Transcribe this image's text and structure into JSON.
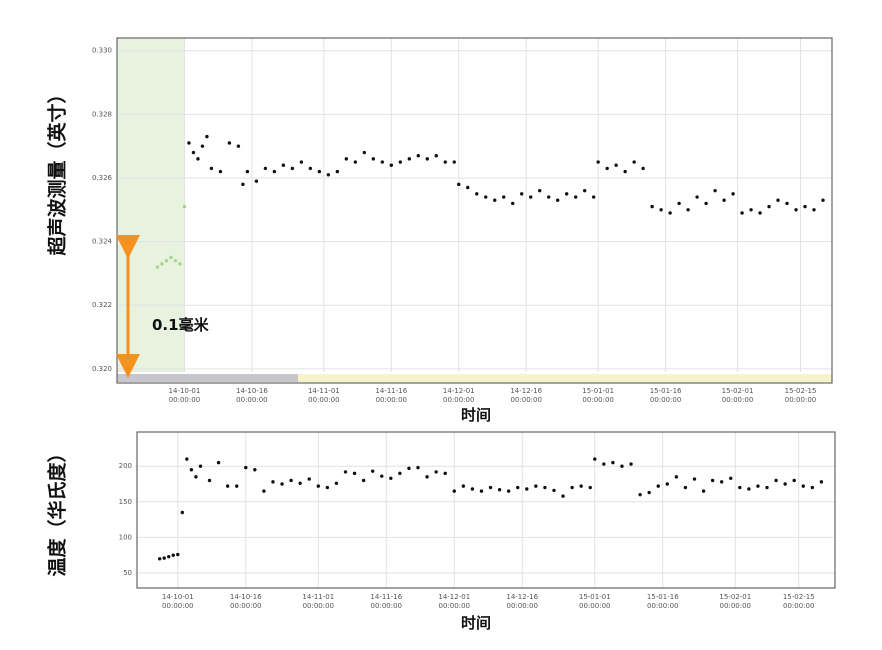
{
  "chart_data": [
    {
      "type": "scatter",
      "ylabel": "超声波测量（英寸）",
      "xlabel": "时间",
      "annotation": "0.1毫米",
      "xlim": [
        "14-09-16",
        "15-02-22"
      ],
      "ylim": [
        0.3199,
        0.3304
      ],
      "highlight_range": [
        "14-09-16",
        "14-10-01"
      ],
      "highlight_color": "#e8f3df",
      "grid": true,
      "yticks": [
        {
          "value": 0.32,
          "label": "0.320"
        },
        {
          "value": 0.322,
          "label": "0.322"
        },
        {
          "value": 0.324,
          "label": "0.324"
        },
        {
          "value": 0.326,
          "label": "0.326"
        },
        {
          "value": 0.328,
          "label": "0.328"
        },
        {
          "value": 0.33,
          "label": "0.330"
        }
      ],
      "xticks": [
        {
          "value": "14-10-01",
          "label": "14-10-01 00:00:00"
        },
        {
          "value": "14-10-16",
          "label": "14-10-16 00:00:00"
        },
        {
          "value": "14-11-01",
          "label": "14-11-01 00:00:00"
        },
        {
          "value": "14-11-16",
          "label": "14-11-16 00:00:00"
        },
        {
          "value": "14-12-01",
          "label": "14-12-01 00:00:00"
        },
        {
          "value": "14-12-16",
          "label": "14-12-16 00:00:00"
        },
        {
          "value": "15-01-01",
          "label": "15-01-01 00:00:00"
        },
        {
          "value": "15-01-16",
          "label": "15-01-16 00:00:00"
        },
        {
          "value": "15-02-01",
          "label": "15-02-01 00:00:00"
        },
        {
          "value": "15-02-15",
          "label": "15-02-15 00:00:00"
        }
      ],
      "series": [
        {
          "color": "#a6d48a",
          "x": [
            "14-09-25",
            "14-09-26",
            "14-09-27",
            "14-09-28",
            "14-09-29",
            "14-09-30",
            "14-10-01"
          ],
          "values": [
            0.3232,
            0.3233,
            0.3234,
            0.3235,
            0.3234,
            0.3233,
            0.3251
          ]
        },
        {
          "color": "#111111",
          "x": [
            "14-10-02",
            "14-10-03",
            "14-10-04",
            "14-10-05",
            "14-10-06",
            "14-10-07",
            "14-10-09",
            "14-10-11",
            "14-10-13",
            "14-10-14",
            "14-10-15",
            "14-10-17",
            "14-10-19",
            "14-10-21",
            "14-10-23",
            "14-10-25",
            "14-10-27",
            "14-10-29",
            "14-10-31",
            "14-11-02",
            "14-11-04",
            "14-11-06",
            "14-11-08",
            "14-11-10",
            "14-11-12",
            "14-11-14",
            "14-11-16",
            "14-11-18",
            "14-11-20",
            "14-11-22",
            "14-11-24",
            "14-11-26",
            "14-11-28",
            "14-11-30",
            "14-12-01",
            "14-12-03",
            "14-12-05",
            "14-12-07",
            "14-12-09",
            "14-12-11",
            "14-12-13",
            "14-12-15",
            "14-12-17",
            "14-12-19",
            "14-12-21",
            "14-12-23",
            "14-12-25",
            "14-12-27",
            "14-12-29",
            "14-12-31",
            "15-01-01",
            "15-01-03",
            "15-01-05",
            "15-01-07",
            "15-01-09",
            "15-01-11",
            "15-01-13",
            "15-01-15",
            "15-01-17",
            "15-01-19",
            "15-01-21",
            "15-01-23",
            "15-01-25",
            "15-01-27",
            "15-01-29",
            "15-01-31",
            "15-02-02",
            "15-02-04",
            "15-02-06",
            "15-02-08",
            "15-02-10",
            "15-02-12",
            "15-02-14",
            "15-02-16",
            "15-02-18",
            "15-02-20"
          ],
          "values": [
            0.3271,
            0.3268,
            0.3266,
            0.327,
            0.3273,
            0.3263,
            0.3262,
            0.3271,
            0.327,
            0.3258,
            0.3262,
            0.3259,
            0.3263,
            0.3262,
            0.3264,
            0.3263,
            0.3265,
            0.3263,
            0.3262,
            0.3261,
            0.3262,
            0.3266,
            0.3265,
            0.3268,
            0.3266,
            0.3265,
            0.3264,
            0.3265,
            0.3266,
            0.3267,
            0.3266,
            0.3267,
            0.3265,
            0.3265,
            0.3258,
            0.3257,
            0.3255,
            0.3254,
            0.3253,
            0.3254,
            0.3252,
            0.3255,
            0.3254,
            0.3256,
            0.3254,
            0.3253,
            0.3255,
            0.3254,
            0.3256,
            0.3254,
            0.3265,
            0.3263,
            0.3264,
            0.3262,
            0.3265,
            0.3263,
            0.3251,
            0.325,
            0.3249,
            0.3252,
            0.325,
            0.3254,
            0.3252,
            0.3256,
            0.3253,
            0.3255,
            0.3249,
            0.325,
            0.3249,
            0.3251,
            0.3253,
            0.3252,
            0.325,
            0.3251,
            0.325,
            0.3253
          ]
        }
      ]
    },
    {
      "type": "scatter",
      "ylabel": "温度（华氏度）",
      "xlabel": "时间",
      "xlim": [
        "14-09-22",
        "15-02-23"
      ],
      "ylim": [
        29,
        248
      ],
      "grid": true,
      "yticks": [
        50,
        100,
        150,
        200
      ],
      "xticks": [
        {
          "value": "14-10-01",
          "label": "14-10-01 00:00:00"
        },
        {
          "value": "14-10-16",
          "label": "14-10-16 00:00:00"
        },
        {
          "value": "14-11-01",
          "label": "14-11-01 00:00:00"
        },
        {
          "value": "14-11-16",
          "label": "14-11-16 00:00:00"
        },
        {
          "value": "14-12-01",
          "label": "14-12-01 00:00:00"
        },
        {
          "value": "14-12-16",
          "label": "14-12-16 00:00:00"
        },
        {
          "value": "15-01-01",
          "label": "15-01-01 00:00:00"
        },
        {
          "value": "15-01-16",
          "label": "15-01-16 00:00:00"
        },
        {
          "value": "15-02-01",
          "label": "15-02-01 00:00:00"
        },
        {
          "value": "15-02-15",
          "label": "15-02-15 00:00:00"
        }
      ],
      "series": [
        {
          "color": "#111111",
          "x": [
            "14-09-27",
            "14-09-28",
            "14-09-29",
            "14-09-30",
            "14-10-01",
            "14-10-02",
            "14-10-03",
            "14-10-04",
            "14-10-05",
            "14-10-06",
            "14-10-08",
            "14-10-10",
            "14-10-12",
            "14-10-14",
            "14-10-16",
            "14-10-18",
            "14-10-20",
            "14-10-22",
            "14-10-24",
            "14-10-26",
            "14-10-28",
            "14-10-30",
            "14-11-01",
            "14-11-03",
            "14-11-05",
            "14-11-07",
            "14-11-09",
            "14-11-11",
            "14-11-13",
            "14-11-15",
            "14-11-17",
            "14-11-19",
            "14-11-21",
            "14-11-23",
            "14-11-25",
            "14-11-27",
            "14-11-29",
            "14-12-01",
            "14-12-03",
            "14-12-05",
            "14-12-07",
            "14-12-09",
            "14-12-11",
            "14-12-13",
            "14-12-15",
            "14-12-17",
            "14-12-19",
            "14-12-21",
            "14-12-23",
            "14-12-25",
            "14-12-27",
            "14-12-29",
            "14-12-31",
            "15-01-01",
            "15-01-03",
            "15-01-05",
            "15-01-07",
            "15-01-09",
            "15-01-11",
            "15-01-13",
            "15-01-15",
            "15-01-17",
            "15-01-19",
            "15-01-21",
            "15-01-23",
            "15-01-25",
            "15-01-27",
            "15-01-29",
            "15-01-31",
            "15-02-02",
            "15-02-04",
            "15-02-06",
            "15-02-08",
            "15-02-10",
            "15-02-12",
            "15-02-14",
            "15-02-16",
            "15-02-18",
            "15-02-20"
          ],
          "values": [
            70,
            71,
            73,
            75,
            76,
            135,
            210,
            195,
            185,
            200,
            180,
            205,
            172,
            172,
            198,
            195,
            165,
            178,
            175,
            180,
            176,
            182,
            172,
            170,
            176,
            192,
            190,
            180,
            193,
            186,
            183,
            190,
            197,
            198,
            185,
            192,
            190,
            165,
            172,
            168,
            165,
            170,
            167,
            165,
            170,
            168,
            172,
            170,
            166,
            158,
            170,
            172,
            170,
            210,
            203,
            205,
            200,
            203,
            160,
            163,
            172,
            175,
            185,
            170,
            182,
            165,
            180,
            178,
            183,
            170,
            168,
            172,
            170,
            180,
            175,
            180,
            172,
            170,
            178
          ]
        }
      ]
    }
  ]
}
